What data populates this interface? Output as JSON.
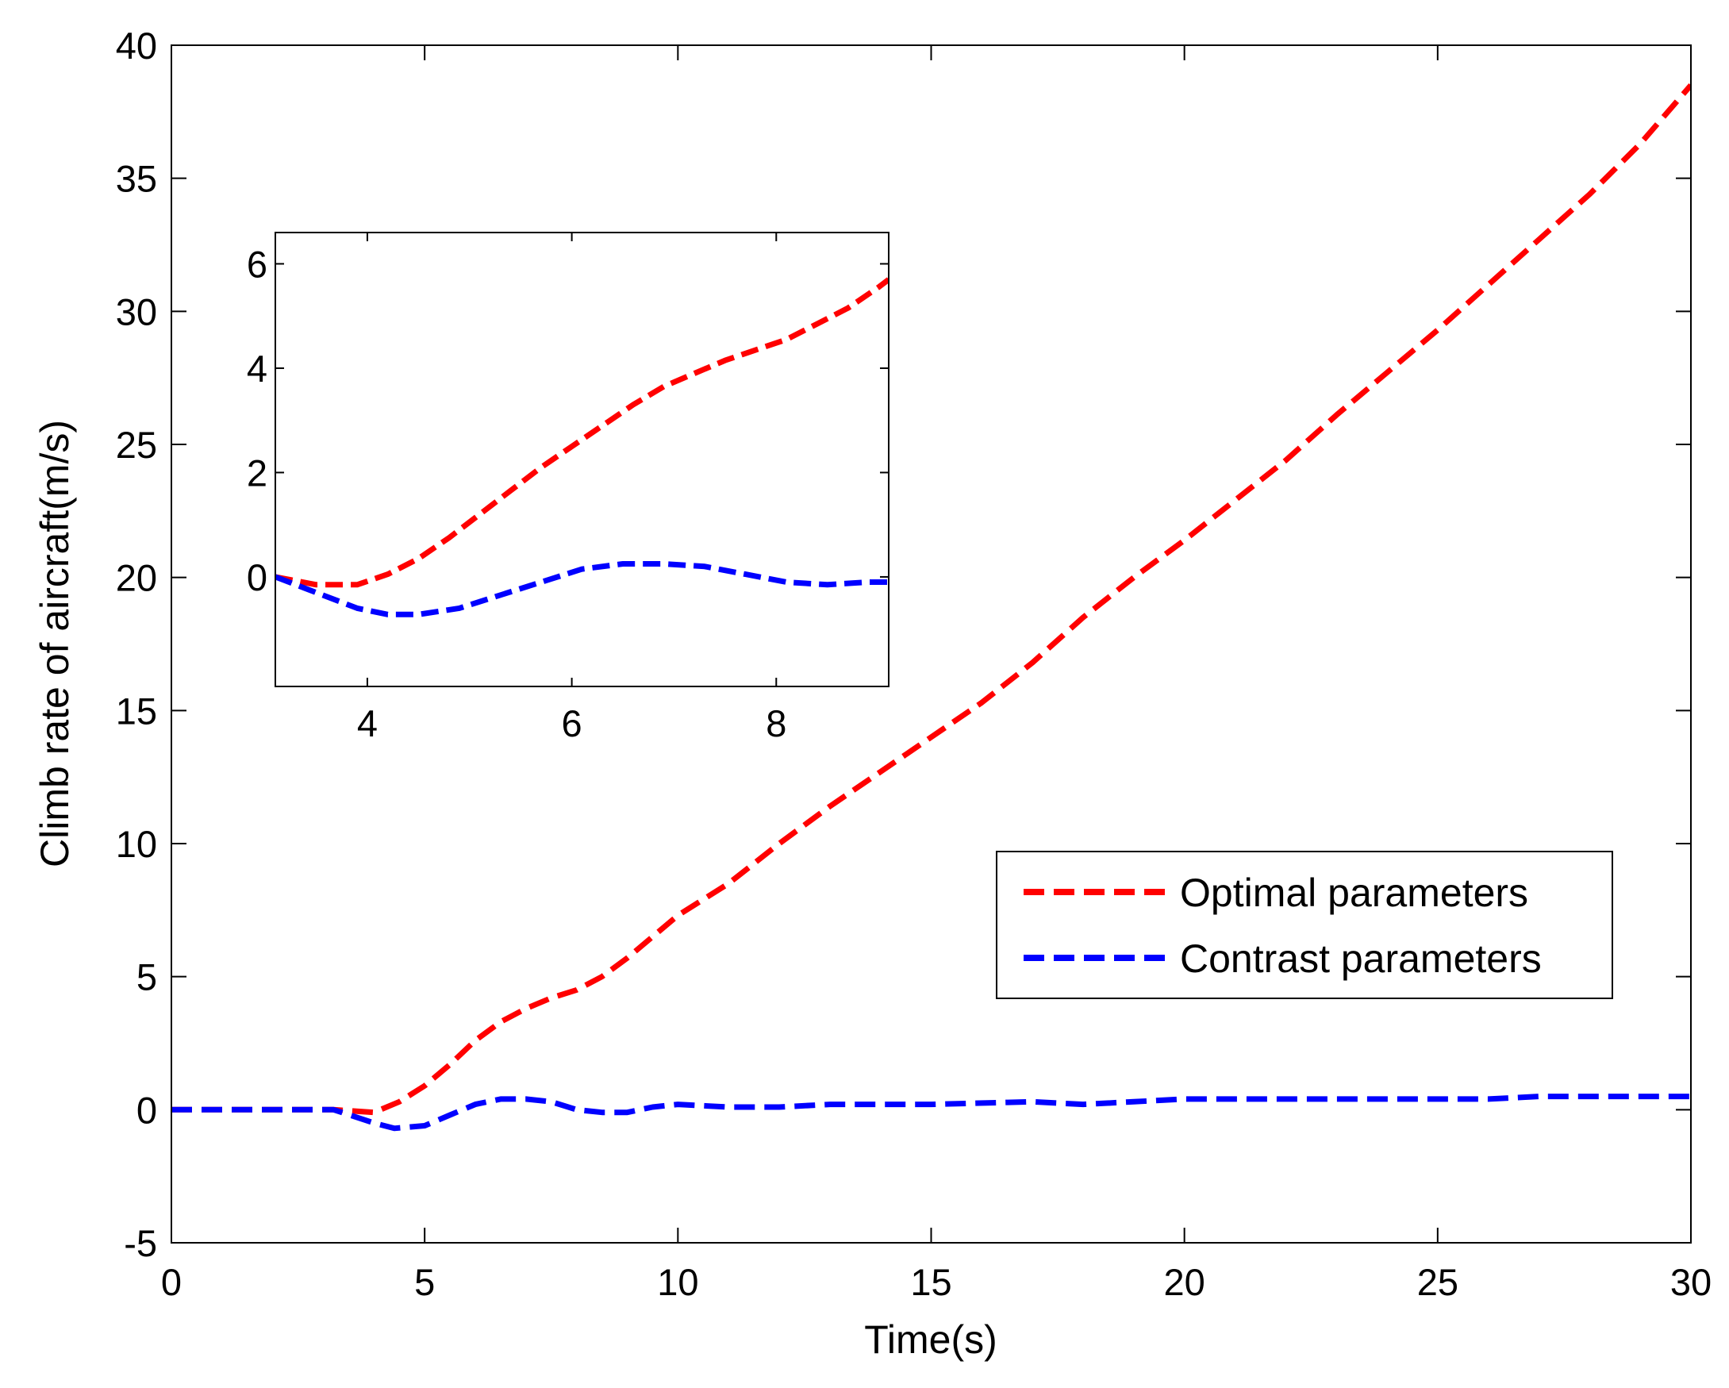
{
  "chart_data": [
    {
      "type": "line",
      "xlabel": "Time(s)",
      "ylabel": "Climb rate of aircraft(m/s)",
      "xlim": [
        0,
        30
      ],
      "ylim": [
        -5,
        40
      ],
      "xticks": [
        0,
        5,
        10,
        15,
        20,
        25,
        30
      ],
      "yticks": [
        -5,
        0,
        5,
        10,
        15,
        20,
        25,
        30,
        35,
        40
      ],
      "grid": false,
      "legend_position": "lower-right",
      "series": [
        {
          "name": "Optimal parameters",
          "color": "#ff0000",
          "style": "dashed",
          "x": [
            0,
            3.2,
            4.0,
            4.5,
            5.0,
            5.5,
            6.0,
            6.5,
            7.0,
            7.5,
            8.0,
            8.5,
            9.0,
            10,
            11,
            12,
            13,
            14,
            15,
            16,
            17,
            18,
            19,
            20,
            21,
            22,
            23,
            24,
            25,
            26,
            27,
            28,
            29,
            30
          ],
          "y": [
            0,
            0,
            -0.1,
            0.3,
            0.9,
            1.7,
            2.6,
            3.3,
            3.8,
            4.2,
            4.5,
            5.0,
            5.7,
            7.3,
            8.5,
            10.0,
            11.4,
            12.7,
            14.0,
            15.3,
            16.8,
            18.5,
            20.0,
            21.4,
            22.9,
            24.4,
            26.1,
            27.7,
            29.3,
            31.0,
            32.7,
            34.4,
            36.3,
            38.5
          ]
        },
        {
          "name": "Contrast parameters",
          "color": "#0000ff",
          "style": "dashed",
          "x": [
            0,
            3.2,
            4.0,
            4.4,
            5.0,
            5.5,
            6.0,
            6.5,
            7.0,
            7.5,
            8.0,
            8.5,
            9.0,
            9.5,
            10,
            11,
            12,
            13,
            15,
            17,
            18,
            19,
            20,
            22,
            24,
            26,
            27,
            28,
            30
          ],
          "y": [
            0,
            0,
            -0.5,
            -0.7,
            -0.6,
            -0.2,
            0.2,
            0.4,
            0.4,
            0.3,
            0.0,
            -0.1,
            -0.1,
            0.1,
            0.2,
            0.1,
            0.1,
            0.2,
            0.2,
            0.3,
            0.2,
            0.3,
            0.4,
            0.4,
            0.4,
            0.4,
            0.5,
            0.5,
            0.5
          ]
        }
      ]
    },
    {
      "type": "line",
      "role": "inset",
      "xlim": [
        3.1,
        9.1
      ],
      "ylim": [
        -2.1,
        6.6
      ],
      "xticks": [
        4,
        6,
        8
      ],
      "yticks": [
        0,
        2,
        4,
        6
      ],
      "series": [
        {
          "name": "Optimal parameters",
          "color": "#ff0000",
          "style": "dashed",
          "x": [
            3.1,
            3.5,
            3.9,
            4.2,
            4.5,
            4.8,
            5.1,
            5.4,
            5.7,
            6.0,
            6.3,
            6.6,
            6.9,
            7.2,
            7.5,
            7.8,
            8.1,
            8.4,
            8.7,
            9.0,
            9.1
          ],
          "y": [
            0.0,
            -0.15,
            -0.15,
            0.05,
            0.35,
            0.75,
            1.2,
            1.65,
            2.1,
            2.5,
            2.9,
            3.3,
            3.65,
            3.9,
            4.15,
            4.35,
            4.55,
            4.85,
            5.15,
            5.55,
            5.7
          ]
        },
        {
          "name": "Contrast parameters",
          "color": "#0000ff",
          "style": "dashed",
          "x": [
            3.1,
            3.5,
            3.9,
            4.2,
            4.5,
            4.9,
            5.3,
            5.7,
            6.1,
            6.5,
            6.9,
            7.3,
            7.7,
            8.1,
            8.5,
            8.9,
            9.1
          ],
          "y": [
            0.0,
            -0.3,
            -0.6,
            -0.72,
            -0.72,
            -0.6,
            -0.35,
            -0.1,
            0.15,
            0.25,
            0.25,
            0.2,
            0.05,
            -0.1,
            -0.15,
            -0.1,
            -0.1
          ]
        }
      ]
    }
  ]
}
